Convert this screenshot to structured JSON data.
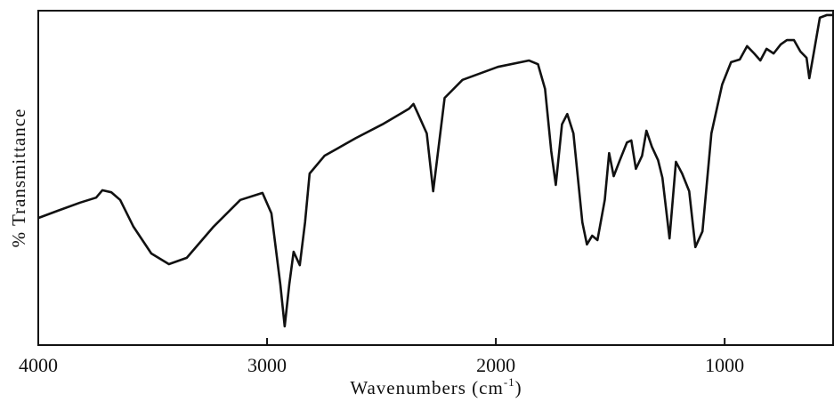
{
  "chart_data": {
    "type": "line",
    "y_label": "% Transmittance",
    "x_label": [
      "Wavenumbers (cm",
      "-1",
      ")"
    ],
    "xlim": [
      4000,
      526
    ],
    "ylim": [
      0,
      100
    ],
    "xticks": [
      4000,
      3000,
      2000,
      1000
    ],
    "grid": false,
    "series": [
      {
        "color": "#111111",
        "x": [
          4000,
          3914,
          3817,
          3747,
          3720,
          3681,
          3642,
          3584,
          3506,
          3429,
          3351,
          3234,
          3117,
          3020,
          2981,
          2942,
          2923,
          2903,
          2884,
          2857,
          2834,
          2814,
          2749,
          2612,
          2496,
          2379,
          2360,
          2340,
          2302,
          2274,
          2255,
          2224,
          2146,
          1991,
          1855,
          1816,
          1785,
          1758,
          1738,
          1711,
          1688,
          1661,
          1622,
          1602,
          1579,
          1556,
          1524,
          1505,
          1485,
          1458,
          1427,
          1408,
          1388,
          1361,
          1342,
          1318,
          1291,
          1272,
          1241,
          1213,
          1186,
          1155,
          1128,
          1097,
          1058,
          1011,
          972,
          934,
          902,
          871,
          844,
          817,
          786,
          755,
          728,
          697,
          669,
          642,
          630,
          611,
          584,
          553,
          526
        ],
        "values": [
          38.0,
          40.2,
          42.6,
          44.1,
          46.3,
          45.7,
          43.4,
          35.4,
          27.4,
          24.2,
          26.1,
          35.4,
          43.4,
          45.5,
          39.4,
          18.1,
          5.6,
          18.1,
          27.9,
          23.9,
          36.7,
          51.3,
          56.6,
          61.9,
          66.0,
          70.7,
          72.1,
          69.1,
          63.3,
          46.0,
          56.6,
          73.9,
          79.3,
          83.2,
          85.1,
          84.0,
          76.6,
          58.0,
          47.9,
          66.0,
          69.1,
          63.3,
          36.7,
          30.1,
          32.7,
          31.4,
          43.4,
          57.4,
          50.5,
          55.3,
          60.6,
          61.2,
          52.7,
          56.6,
          64.1,
          59.3,
          55.3,
          50.0,
          31.9,
          54.8,
          51.3,
          46.0,
          29.3,
          34.0,
          63.3,
          77.9,
          84.6,
          85.4,
          89.4,
          87.2,
          85.1,
          88.6,
          87.2,
          89.9,
          91.2,
          91.2,
          87.8,
          85.9,
          79.8,
          87.2,
          97.9,
          98.7,
          98.7
        ]
      }
    ]
  }
}
